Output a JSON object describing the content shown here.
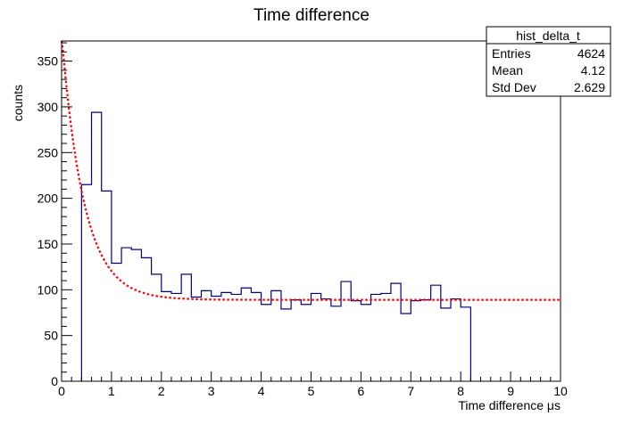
{
  "chart_data": {
    "type": "histogram",
    "title": "Time difference",
    "xlabel": "Time difference μs",
    "ylabel": "counts",
    "xlim": [
      0,
      10
    ],
    "ylim": [
      0,
      372
    ],
    "xticks": [
      0,
      1,
      2,
      3,
      4,
      5,
      6,
      7,
      8,
      9,
      10
    ],
    "yticks": [
      0,
      50,
      100,
      150,
      200,
      250,
      300,
      350
    ],
    "grid": false,
    "bin_width": 0.2,
    "series": [
      {
        "color": "#00008b",
        "x_start": 0.4,
        "values": [
          215,
          294,
          208,
          129,
          146,
          144,
          135,
          117,
          98,
          96,
          117,
          92,
          99,
          93,
          97,
          95,
          102,
          97,
          84,
          99,
          79,
          89,
          84,
          96,
          90,
          82,
          109,
          88,
          84,
          95,
          96,
          107,
          74,
          88,
          89,
          105,
          80,
          90,
          81
        ]
      }
    ],
    "fit": {
      "color": "#ff0000",
      "style": "dotted",
      "function": "A*exp(-x/tau)+C",
      "A": 290,
      "tau": 0.45,
      "C": 89,
      "x_range": [
        0,
        10
      ]
    },
    "stats_box": {
      "name": "hist_delta_t",
      "rows": [
        {
          "label": "Entries",
          "value": "4624"
        },
        {
          "label": "Mean",
          "value": "4.12"
        },
        {
          "label": "Std Dev",
          "value": "2.629"
        }
      ]
    }
  }
}
